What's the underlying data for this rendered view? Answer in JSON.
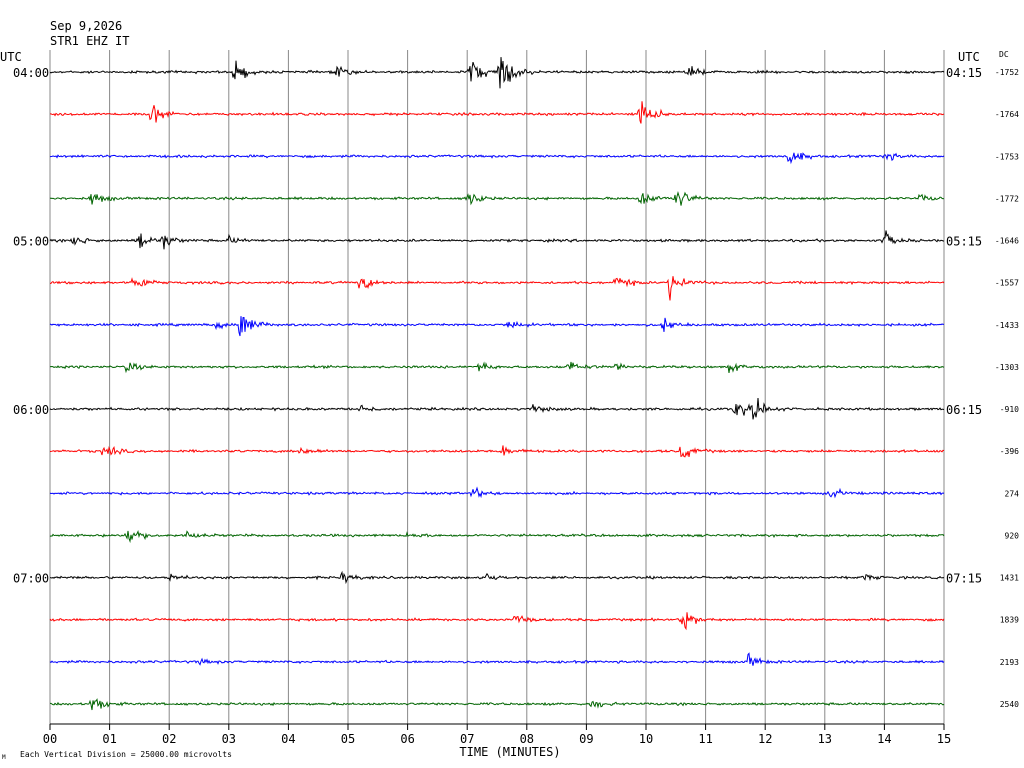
{
  "header": {
    "date": "Sep 9,2026",
    "station": "STR1 EHZ IT"
  },
  "footer": {
    "division_note": "Each Vertical Division = 25000.00 microvolts",
    "corner_mark": "M"
  },
  "chart_data": {
    "type": "line",
    "title": "",
    "xlabel": "TIME (MINUTES)",
    "ylabel": "",
    "xlim": [
      0,
      15
    ],
    "x_ticks": [
      "00",
      "01",
      "02",
      "03",
      "04",
      "05",
      "06",
      "07",
      "08",
      "09",
      "10",
      "11",
      "12",
      "13",
      "14",
      "15"
    ],
    "grid": "vertical lines at each minute",
    "left_axis_title": "UTC",
    "right_axis_title": "UTC",
    "dc_title": "DC",
    "trace_colors": [
      "#000000",
      "#ff0000",
      "#0000ff",
      "#006400"
    ],
    "left_time_labels": [
      {
        "row": 0,
        "text": "04:00"
      },
      {
        "row": 4,
        "text": "05:00"
      },
      {
        "row": 8,
        "text": "06:00"
      },
      {
        "row": 12,
        "text": "07:00"
      }
    ],
    "right_time_labels": [
      {
        "row": 0,
        "text": "04:15"
      },
      {
        "row": 4,
        "text": "05:15"
      },
      {
        "row": 8,
        "text": "06:15"
      },
      {
        "row": 12,
        "text": "07:15"
      }
    ],
    "dc_offsets": [
      "-1752",
      "-1764",
      "-1753",
      "-1772",
      "-1646",
      "-1557",
      "-1433",
      "-1303",
      "-910",
      "-396",
      "274",
      "920",
      "1431",
      "1839",
      "2193",
      "2540"
    ],
    "series": [
      {
        "row": 0,
        "events": [
          {
            "minute": 3.1,
            "amp": 1.0
          },
          {
            "minute": 4.8,
            "amp": 0.5
          },
          {
            "minute": 7.05,
            "amp": 1.4
          },
          {
            "minute": 7.55,
            "amp": 2.4
          },
          {
            "minute": 10.7,
            "amp": 0.5
          }
        ]
      },
      {
        "row": 1,
        "events": [
          {
            "minute": 1.7,
            "amp": 1.0
          },
          {
            "minute": 9.9,
            "amp": 1.6
          }
        ]
      },
      {
        "row": 2,
        "events": [
          {
            "minute": 12.4,
            "amp": 0.8
          },
          {
            "minute": 14.0,
            "amp": 0.4
          }
        ]
      },
      {
        "row": 3,
        "events": [
          {
            "minute": 0.7,
            "amp": 0.6
          },
          {
            "minute": 7.0,
            "amp": 0.7
          },
          {
            "minute": 9.9,
            "amp": 0.7
          },
          {
            "minute": 10.5,
            "amp": 1.2
          },
          {
            "minute": 14.6,
            "amp": 0.3
          }
        ]
      },
      {
        "row": 4,
        "events": [
          {
            "minute": 0.4,
            "amp": 0.5
          },
          {
            "minute": 1.5,
            "amp": 0.9
          },
          {
            "minute": 1.9,
            "amp": 0.6
          },
          {
            "minute": 3.0,
            "amp": 0.3
          },
          {
            "minute": 14.0,
            "amp": 0.7
          }
        ]
      },
      {
        "row": 5,
        "events": [
          {
            "minute": 1.4,
            "amp": 0.9
          },
          {
            "minute": 5.2,
            "amp": 0.7
          },
          {
            "minute": 9.5,
            "amp": 0.7
          },
          {
            "minute": 10.4,
            "amp": 1.2
          }
        ]
      },
      {
        "row": 6,
        "events": [
          {
            "minute": 2.8,
            "amp": 0.3
          },
          {
            "minute": 3.2,
            "amp": 1.5
          },
          {
            "minute": 7.7,
            "amp": 0.4
          },
          {
            "minute": 10.3,
            "amp": 0.5
          }
        ]
      },
      {
        "row": 7,
        "events": [
          {
            "minute": 1.3,
            "amp": 0.5
          },
          {
            "minute": 7.2,
            "amp": 0.4
          },
          {
            "minute": 8.7,
            "amp": 0.5
          },
          {
            "minute": 9.5,
            "amp": 0.3
          },
          {
            "minute": 11.4,
            "amp": 0.4
          }
        ]
      },
      {
        "row": 8,
        "events": [
          {
            "minute": 5.2,
            "amp": 0.4
          },
          {
            "minute": 8.1,
            "amp": 0.4
          },
          {
            "minute": 11.5,
            "amp": 0.9
          },
          {
            "minute": 11.8,
            "amp": 1.1
          }
        ]
      },
      {
        "row": 9,
        "events": [
          {
            "minute": 0.9,
            "amp": 0.6
          },
          {
            "minute": 4.2,
            "amp": 0.3
          },
          {
            "minute": 7.6,
            "amp": 0.4
          },
          {
            "minute": 10.6,
            "amp": 0.8
          }
        ]
      },
      {
        "row": 10,
        "events": [
          {
            "minute": 7.1,
            "amp": 0.4
          },
          {
            "minute": 13.1,
            "amp": 0.4
          }
        ]
      },
      {
        "row": 11,
        "events": [
          {
            "minute": 1.3,
            "amp": 0.9
          },
          {
            "minute": 2.3,
            "amp": 0.3
          },
          {
            "minute": 6.0,
            "amp": 0.2
          }
        ]
      },
      {
        "row": 12,
        "events": [
          {
            "minute": 2.0,
            "amp": 0.3
          },
          {
            "minute": 4.9,
            "amp": 0.4
          },
          {
            "minute": 7.3,
            "amp": 0.4
          },
          {
            "minute": 13.6,
            "amp": 0.3
          }
        ]
      },
      {
        "row": 13,
        "events": [
          {
            "minute": 7.8,
            "amp": 0.4
          },
          {
            "minute": 10.6,
            "amp": 1.0
          }
        ]
      },
      {
        "row": 14,
        "events": [
          {
            "minute": 2.5,
            "amp": 0.2
          },
          {
            "minute": 11.7,
            "amp": 0.6
          }
        ]
      },
      {
        "row": 15,
        "events": [
          {
            "minute": 0.7,
            "amp": 0.8
          },
          {
            "minute": 9.1,
            "amp": 0.4
          }
        ]
      }
    ]
  }
}
